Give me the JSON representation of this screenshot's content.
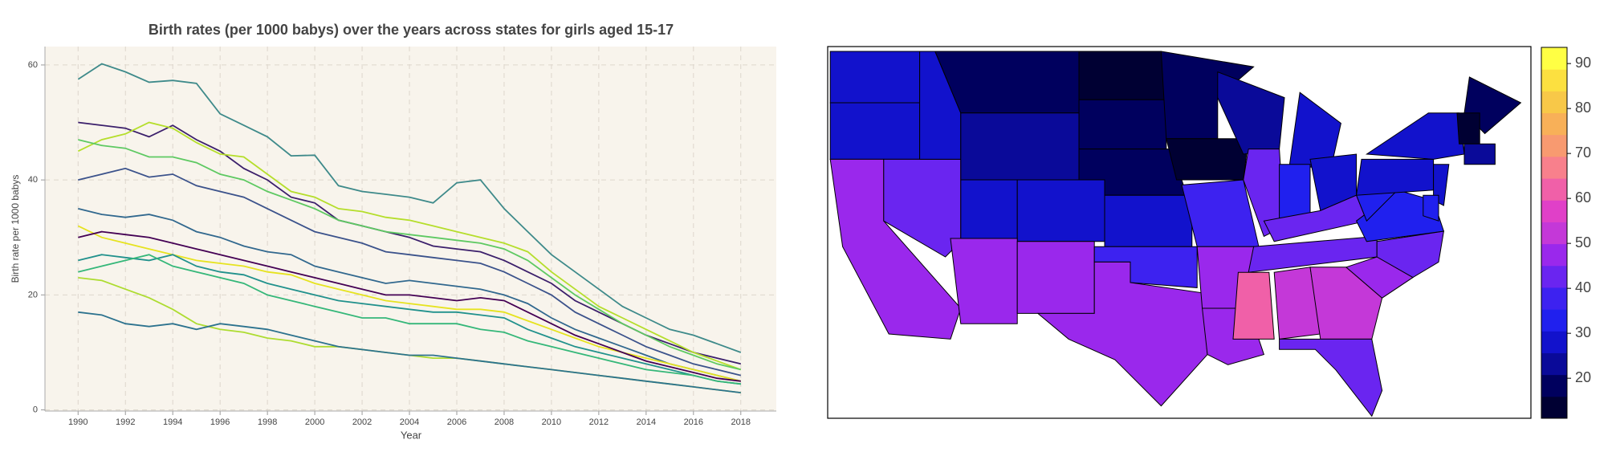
{
  "chart_data": [
    {
      "type": "line",
      "title": "Birth rates (per 1000 babys) over the years across states for girls aged 15-17",
      "x_label": "Year",
      "y_label": "Birth rate per 1000 babys",
      "x": [
        1990,
        1991,
        1992,
        1993,
        1994,
        1995,
        1996,
        1997,
        1998,
        1999,
        2000,
        2001,
        2002,
        2003,
        2004,
        2005,
        2006,
        2007,
        2008,
        2009,
        2010,
        2011,
        2012,
        2013,
        2014,
        2015,
        2016,
        2017,
        2018
      ],
      "xlim": [
        1988.6,
        2019.5
      ],
      "xticks": [
        1990,
        1992,
        1994,
        1996,
        1998,
        2000,
        2002,
        2004,
        2006,
        2008,
        2010,
        2012,
        2014,
        2016,
        2018
      ],
      "ylim": [
        -0.2,
        63.2
      ],
      "yticks": [
        0,
        20,
        40,
        60
      ],
      "grid": true,
      "series": [
        {
          "color": "#3e8a8a",
          "values": [
            57.5,
            60.2,
            58.8,
            57,
            57.3,
            56.8,
            51.5,
            49.5,
            47.5,
            44.2,
            44.3,
            39,
            38,
            37.5,
            37,
            36,
            39.5,
            40,
            35,
            31,
            27,
            24,
            21,
            18,
            16,
            14,
            13,
            11.5,
            10
          ]
        },
        {
          "color": "#3b1f6b",
          "values": [
            50,
            49.5,
            49,
            47.5,
            49.5,
            47,
            45,
            42,
            40,
            37,
            36,
            33,
            32,
            31,
            30,
            28.5,
            28,
            27.5,
            26,
            24,
            22,
            19,
            17,
            15,
            13,
            11.5,
            10,
            9,
            8
          ]
        },
        {
          "color": "#b5de2b",
          "values": [
            45,
            47,
            48,
            50,
            49,
            46.5,
            44.5,
            44,
            41,
            38,
            37,
            35,
            34.5,
            33.5,
            33,
            32,
            31,
            30,
            29,
            27.5,
            24,
            21,
            18,
            16,
            14,
            12,
            10,
            8.5,
            7
          ]
        },
        {
          "color": "#5ec962",
          "values": [
            47,
            46,
            45.5,
            44,
            44,
            43,
            41,
            40,
            38,
            36.5,
            35,
            33,
            32,
            31,
            30.5,
            30,
            29.5,
            29,
            28,
            26,
            23,
            20,
            17.5,
            15,
            13,
            11,
            9.5,
            8,
            7
          ]
        },
        {
          "color": "#3b528b",
          "values": [
            40,
            41,
            42,
            40.5,
            41,
            39,
            38,
            37,
            35,
            33,
            31,
            30,
            29,
            27.5,
            27,
            26.5,
            26,
            25.5,
            24,
            22,
            20,
            17,
            15,
            13,
            11,
            9.5,
            8,
            7,
            6
          ]
        },
        {
          "color": "#31688e",
          "values": [
            35,
            34,
            33.5,
            34,
            33,
            31,
            30,
            28.5,
            27.5,
            27,
            25,
            24,
            23,
            22,
            22.5,
            22,
            21.5,
            21,
            20,
            18.5,
            16,
            14,
            12.5,
            11,
            9.5,
            8,
            7,
            6,
            5
          ]
        },
        {
          "color": "#e6e31f",
          "values": [
            32,
            30,
            29,
            28,
            27,
            26,
            25.5,
            25,
            24,
            23.5,
            22,
            21,
            20,
            19,
            18.5,
            18,
            17.5,
            17.5,
            17,
            15.5,
            14,
            12.5,
            11,
            10,
            9,
            8,
            7,
            6,
            5
          ]
        },
        {
          "color": "#21918c",
          "values": [
            26,
            27,
            26.5,
            26,
            27,
            25,
            24,
            23.5,
            22,
            21,
            20,
            19,
            18.5,
            18,
            17.5,
            17,
            17,
            16.5,
            16,
            14,
            12.5,
            11,
            10,
            9,
            8,
            7,
            6,
            5,
            4.5
          ]
        },
        {
          "color": "#440154",
          "values": [
            30,
            31,
            30.5,
            30,
            29,
            28,
            27,
            26,
            25,
            24,
            23,
            22,
            21,
            20,
            20,
            19.5,
            19,
            19.5,
            19,
            17,
            15,
            13,
            11.5,
            10,
            8.5,
            7.5,
            6.5,
            5.5,
            5
          ]
        },
        {
          "color": "#addc30",
          "values": [
            23,
            22.5,
            21,
            19.5,
            17.5,
            15,
            14,
            13.5,
            12.5,
            12,
            11,
            11,
            10.5,
            10,
            9.5,
            9,
            9,
            8.5,
            8,
            7.5,
            7,
            6.5,
            6,
            5.5,
            5,
            4.5,
            4,
            3.5,
            3
          ]
        },
        {
          "color": "#2c728e",
          "values": [
            17,
            16.5,
            15,
            14.5,
            15,
            14,
            15,
            14.5,
            14,
            13,
            12,
            11,
            10.5,
            10,
            9.5,
            9.5,
            9,
            8.5,
            8,
            7.5,
            7,
            6.5,
            6,
            5.5,
            5,
            4.5,
            4,
            3.5,
            3
          ]
        },
        {
          "color": "#35b779",
          "values": [
            24,
            25,
            26,
            27,
            25,
            24,
            23,
            22,
            20,
            19,
            18,
            17,
            16,
            16,
            15,
            15,
            15,
            14,
            13.5,
            12,
            11,
            10,
            9,
            8,
            7,
            6.5,
            6,
            5,
            4.5
          ]
        }
      ]
    },
    {
      "type": "map",
      "values": [
        28,
        28,
        48,
        45,
        27,
        20,
        24,
        26,
        28,
        48,
        48,
        12,
        18,
        20,
        27,
        38,
        48,
        16,
        15,
        40,
        48,
        48,
        22,
        42,
        30,
        33,
        30,
        42,
        45,
        62,
        50,
        50,
        42,
        48,
        42,
        32,
        35,
        28,
        28,
        20,
        13,
        22,
        30,
        35
      ],
      "lim": [
        11.1,
        93.6
      ],
      "ticks": [
        20,
        30,
        40,
        50,
        60,
        70,
        80,
        90
      ],
      "colorscale": [
        "#000033",
        "#00005e",
        "#0a0a99",
        "#1212cc",
        "#2020ee",
        "#3d22f0",
        "#6a25f0",
        "#9a28ec",
        "#c438d8",
        "#e040c8",
        "#f060a8",
        "#f8808c",
        "#f89a70",
        "#f8b058",
        "#f8c848",
        "#fce040",
        "#ffff44"
      ]
    }
  ]
}
